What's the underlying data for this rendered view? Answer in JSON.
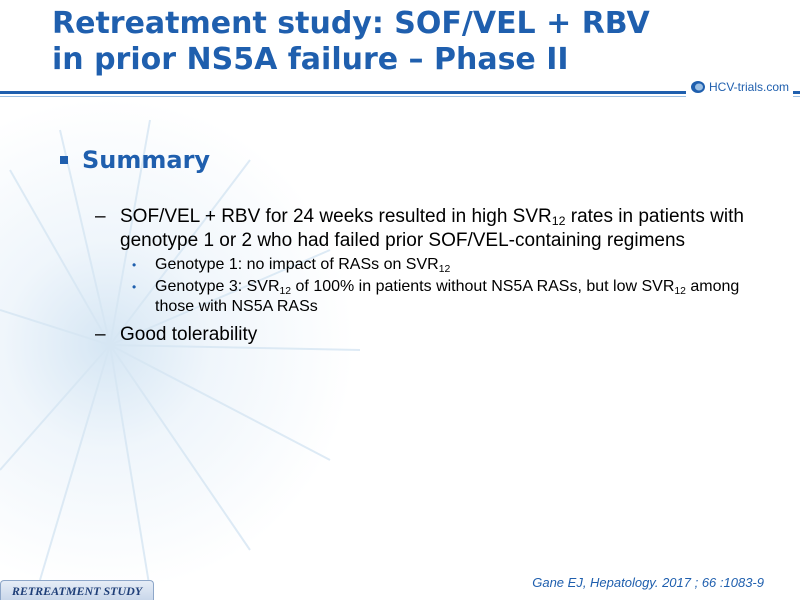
{
  "slide": {
    "title_line1": "Retreatment study: SOF/VEL + RBV",
    "title_line2": "in prior NS5A failure – Phase II",
    "logo_text": "HCV-trials.com",
    "logo_icon": "hcv-trials-logo-icon",
    "section_heading": "Summary",
    "bullets": [
      {
        "segments": [
          "SOF/VEL + RBV for 24 weeks resulted in high SVR",
          "12",
          " rates in patients with genotype 1 or 2 who had failed prior SOF/VEL-containing regimens"
        ],
        "sub_bullets": [
          {
            "segments": [
              "Genotype 1: no impact of RASs on SVR",
              "12",
              ""
            ]
          },
          {
            "segments": [
              "Genotype 3: SVR",
              "12",
              " of 100% in patients without NS5A RASs, but low SVR",
              "12",
              " among those with NS5A RASs"
            ]
          }
        ]
      },
      {
        "segments": [
          "Good tolerability"
        ],
        "sub_bullets": []
      }
    ],
    "footer_tag": "RETREATMENT STUDY",
    "citation": "Gane EJ, Hepatology. 2017 ; 66 :1083-9",
    "colors": {
      "accent": "#1f5fae",
      "rule_light": "#9cc0e4"
    }
  }
}
